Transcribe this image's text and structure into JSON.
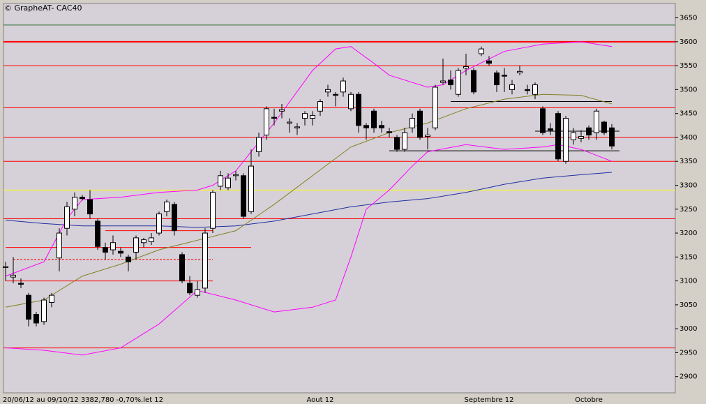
{
  "chart_data": {
    "type": "candlestick",
    "title": "© GrapheAT- CAC40",
    "footer": "20/06/12 au 09/10/12  3382,780  -0,70%.let 12",
    "categories": [
      null,
      null,
      null,
      null,
      null,
      null,
      null,
      null,
      null,
      null,
      null,
      null,
      null,
      null,
      null,
      null,
      null,
      null,
      null,
      null,
      null,
      null,
      null,
      null,
      null,
      null,
      null,
      null,
      null,
      null,
      null,
      null,
      null,
      null,
      null,
      null,
      null,
      null,
      null,
      null,
      null,
      "Aout 12",
      null,
      null,
      null,
      null,
      null,
      null,
      null,
      null,
      null,
      null,
      null,
      null,
      null,
      null,
      null,
      null,
      null,
      null,
      null,
      null,
      null,
      "Septembre 12",
      null,
      null,
      null,
      null,
      null,
      null,
      null,
      null,
      null,
      null,
      null,
      null,
      "Octobre",
      null,
      null,
      null
    ],
    "open": [
      3128,
      3108,
      3095,
      3070,
      3030,
      3015,
      3055,
      3148,
      3210,
      3250,
      3275,
      3270,
      3225,
      3170,
      3165,
      3162,
      3150,
      3160,
      3180,
      3182,
      3200,
      3245,
      3260,
      3155,
      3095,
      3070,
      3085,
      3210,
      3298,
      3295,
      3320,
      3320,
      3245,
      3370,
      3405,
      3442,
      3455,
      3430,
      3420,
      3440,
      3440,
      3455,
      3495,
      3490,
      3495,
      3460,
      3490,
      3425,
      3455,
      3425,
      3412,
      3400,
      3375,
      3420,
      3455,
      3402,
      3420,
      3515,
      3520,
      3490,
      3545,
      3540,
      3575,
      3560,
      3535,
      3530,
      3500,
      3535,
      3500,
      3490,
      3460,
      3418,
      3450,
      3350,
      3395,
      3398,
      3420,
      3410,
      3432,
      3420
    ],
    "high": [
      3140,
      3150,
      3105,
      3075,
      3035,
      3065,
      3075,
      3210,
      3265,
      3285,
      3280,
      3290,
      3230,
      3180,
      3195,
      3170,
      3155,
      3195,
      3190,
      3200,
      3245,
      3270,
      3265,
      3160,
      3110,
      3100,
      3210,
      3290,
      3330,
      3325,
      3330,
      3325,
      3375,
      3410,
      3465,
      3460,
      3470,
      3440,
      3430,
      3455,
      3455,
      3480,
      3510,
      3495,
      3525,
      3495,
      3495,
      3430,
      3460,
      3435,
      3420,
      3405,
      3420,
      3450,
      3460,
      3420,
      3510,
      3565,
      3540,
      3545,
      3575,
      3545,
      3590,
      3570,
      3540,
      3545,
      3520,
      3550,
      3510,
      3515,
      3465,
      3430,
      3455,
      3445,
      3420,
      3415,
      3425,
      3460,
      3435,
      3428
    ],
    "low": [
      3100,
      3095,
      3085,
      3005,
      3005,
      3008,
      3045,
      3120,
      3195,
      3235,
      3268,
      3230,
      3165,
      3145,
      3155,
      3150,
      3120,
      3145,
      3170,
      3175,
      3195,
      3235,
      3195,
      3095,
      3070,
      3065,
      3075,
      3200,
      3290,
      3290,
      3310,
      3230,
      3240,
      3360,
      3395,
      3425,
      3440,
      3410,
      3405,
      3425,
      3425,
      3445,
      3485,
      3465,
      3485,
      3455,
      3410,
      3395,
      3410,
      3410,
      3400,
      3370,
      3370,
      3410,
      3395,
      3375,
      3415,
      3510,
      3500,
      3485,
      3530,
      3490,
      3570,
      3550,
      3495,
      3495,
      3490,
      3530,
      3490,
      3480,
      3405,
      3405,
      3350,
      3345,
      3385,
      3390,
      3395,
      3395,
      3405,
      3375
    ],
    "close": [
      3130,
      3112,
      3093,
      3020,
      3012,
      3060,
      3070,
      3200,
      3255,
      3275,
      3272,
      3240,
      3172,
      3160,
      3180,
      3158,
      3140,
      3190,
      3186,
      3190,
      3240,
      3265,
      3205,
      3100,
      3075,
      3082,
      3200,
      3285,
      3320,
      3315,
      3322,
      3235,
      3340,
      3400,
      3460,
      3440,
      3458,
      3432,
      3422,
      3450,
      3446,
      3475,
      3500,
      3488,
      3518,
      3490,
      3425,
      3420,
      3420,
      3420,
      3410,
      3375,
      3410,
      3440,
      3400,
      3405,
      3505,
      3518,
      3510,
      3540,
      3548,
      3495,
      3585,
      3555,
      3510,
      3528,
      3510,
      3538,
      3498,
      3510,
      3410,
      3415,
      3355,
      3440,
      3410,
      3402,
      3405,
      3455,
      3410,
      3382
    ],
    "up_color": "#ffffff",
    "down_color": "#000000",
    "ylim": [
      2866,
      3680
    ],
    "yticks": [
      2900,
      2950,
      3000,
      3050,
      3100,
      3150,
      3200,
      3250,
      3300,
      3350,
      3400,
      3450,
      3500,
      3550,
      3600,
      3650
    ],
    "levels": [
      {
        "value": 3635,
        "color": "#2e6b2e"
      },
      {
        "value": 3600,
        "color": "#ff0000",
        "width": 2
      },
      {
        "value": 3550,
        "color": "#ff0000"
      },
      {
        "value": 3462,
        "color": "#ff0000"
      },
      {
        "value": 3400,
        "color": "#ff0000"
      },
      {
        "value": 3350,
        "color": "#ff0000"
      },
      {
        "value": 3290,
        "color": "#ffff00"
      },
      {
        "value": 3230,
        "color": "#ff0000"
      },
      {
        "value": 2960,
        "color": "#ff0000"
      },
      {
        "value": 3170,
        "color": "#ff0000",
        "x": [
          0,
          32
        ]
      },
      {
        "value": 3100,
        "color": "#ff0000",
        "x": [
          0,
          27
        ]
      },
      {
        "value": 3145,
        "color": "#ff0000",
        "x": [
          1,
          27
        ],
        "dashed": true
      },
      {
        "value": 3205,
        "color": "#ff0000",
        "x": [
          13,
          27
        ]
      },
      {
        "value": 3475,
        "color": "#000000",
        "x": [
          58,
          79
        ]
      },
      {
        "value": 3413,
        "color": "#000000",
        "x": [
          69,
          80
        ]
      },
      {
        "value": 3372,
        "color": "#000000",
        "x": [
          50,
          80
        ]
      }
    ],
    "overlays": [
      {
        "color": "#1f2fa0",
        "x": [
          0,
          5,
          10,
          15,
          20,
          25,
          30,
          35,
          40,
          45,
          50,
          55,
          60,
          65,
          70,
          75,
          79
        ],
        "values": [
          3227,
          3220,
          3215,
          3215,
          3215,
          3212,
          3215,
          3225,
          3240,
          3255,
          3265,
          3272,
          3285,
          3302,
          3315,
          3322,
          3327
        ]
      },
      {
        "color": "#808020",
        "x": [
          0,
          5,
          10,
          15,
          20,
          25,
          30,
          35,
          40,
          45,
          50,
          55,
          60,
          65,
          70,
          75,
          79
        ],
        "values": [
          3045,
          3060,
          3110,
          3135,
          3165,
          3185,
          3205,
          3260,
          3320,
          3380,
          3410,
          3430,
          3460,
          3480,
          3490,
          3488,
          3470
        ]
      },
      {
        "color": "#ff00ff",
        "x": [
          0,
          5,
          8,
          10,
          15,
          20,
          25,
          27,
          30,
          35,
          40,
          43,
          45,
          48,
          50,
          55,
          57,
          60,
          65,
          70,
          75,
          79
        ],
        "values": [
          3110,
          3140,
          3230,
          3270,
          3275,
          3285,
          3290,
          3300,
          3330,
          3430,
          3540,
          3585,
          3590,
          3555,
          3530,
          3505,
          3510,
          3540,
          3580,
          3595,
          3600,
          3590
        ]
      },
      {
        "color": "#ff00ff",
        "x": [
          0,
          5,
          10,
          15,
          20,
          25,
          30,
          35,
          40,
          43,
          45,
          47,
          50,
          53,
          55,
          60,
          65,
          70,
          72,
          75,
          79
        ],
        "values": [
          2960,
          2955,
          2945,
          2960,
          3010,
          3080,
          3060,
          3035,
          3045,
          3060,
          3150,
          3250,
          3290,
          3340,
          3370,
          3385,
          3375,
          3380,
          3385,
          3375,
          3350
        ]
      }
    ]
  }
}
